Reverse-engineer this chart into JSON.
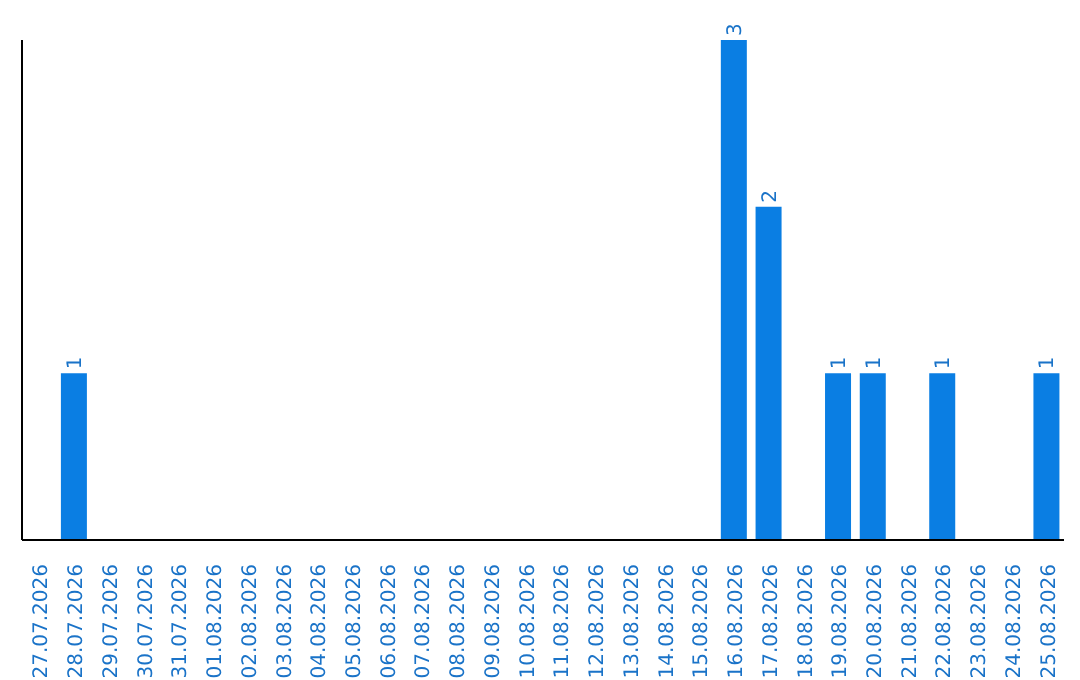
{
  "chart_data": {
    "type": "bar",
    "categories": [
      "27.07.2026",
      "28.07.2026",
      "29.07.2026",
      "30.07.2026",
      "31.07.2026",
      "01.08.2026",
      "02.08.2026",
      "03.08.2026",
      "04.08.2026",
      "05.08.2026",
      "06.08.2026",
      "07.08.2026",
      "08.08.2026",
      "09.08.2026",
      "10.08.2026",
      "11.08.2026",
      "12.08.2026",
      "13.08.2026",
      "14.08.2026",
      "15.08.2026",
      "16.08.2026",
      "17.08.2026",
      "18.08.2026",
      "19.08.2026",
      "20.08.2026",
      "21.08.2026",
      "22.08.2026",
      "23.08.2026",
      "24.08.2026",
      "25.08.2026"
    ],
    "values": [
      0,
      1,
      0,
      0,
      0,
      0,
      0,
      0,
      0,
      0,
      0,
      0,
      0,
      0,
      0,
      0,
      0,
      0,
      0,
      0,
      3,
      2,
      0,
      1,
      1,
      0,
      1,
      0,
      0,
      1
    ],
    "value_labels": [
      null,
      "1",
      null,
      null,
      null,
      null,
      null,
      null,
      null,
      null,
      null,
      null,
      null,
      null,
      null,
      null,
      null,
      null,
      null,
      null,
      "3",
      "2",
      null,
      "1",
      "1",
      null,
      "1",
      null,
      null,
      "1"
    ],
    "color": "#0a7ee3",
    "tick_labels": "x"
  }
}
